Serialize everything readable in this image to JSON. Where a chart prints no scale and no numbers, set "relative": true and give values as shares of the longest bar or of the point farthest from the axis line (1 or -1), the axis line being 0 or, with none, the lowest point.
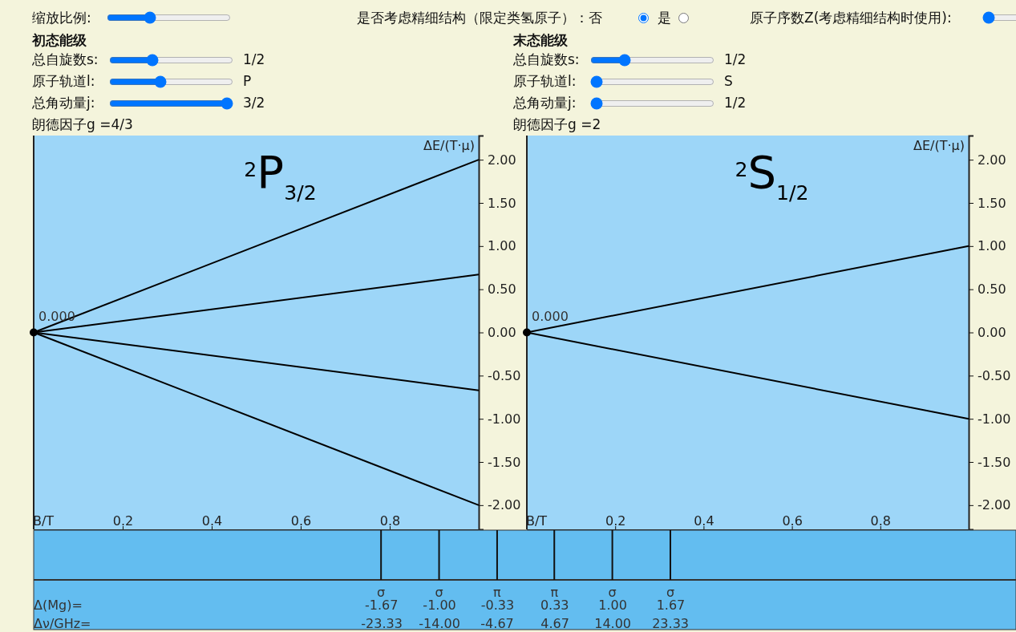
{
  "chart_data": [
    {
      "type": "other",
      "annotations": [
        "缩放比例:",
        "是否考虑精细结构（限定类氢原子）：否",
        "是",
        "原子序数Z(考虑精细结构时使用):"
      ]
    },
    {
      "type": "line",
      "title": "$^{2}$P$_{3/2}$",
      "xlabel": "B/T",
      "ylabel": "ΔE/(T·μ)",
      "xlim": [
        0,
        1
      ],
      "ylim": [
        -2.28,
        2.28
      ],
      "xticks": [
        0.2,
        0.4,
        0.6,
        0.8
      ],
      "yticks": [
        {
          "value": 2,
          "label": "2.00"
        },
        {
          "value": 1.5,
          "label": "1.50"
        },
        {
          "value": 1,
          "label": "1.00"
        },
        {
          "value": 0.5,
          "label": "0.50"
        },
        {
          "value": 0,
          "label": "0.00"
        },
        {
          "value": -0.5,
          "label": "-0.50"
        },
        {
          "value": -1,
          "label": "-1.00"
        },
        {
          "value": -1.5,
          "label": "-1.50"
        },
        {
          "value": -2,
          "label": "-2.00"
        }
      ],
      "grid": false,
      "line_style": "solid",
      "x": [
        0,
        1
      ],
      "series": [
        {
          "color": "#000000",
          "values": [
            0,
            2
          ]
        },
        {
          "color": "#000000",
          "values": [
            0,
            0.67
          ]
        },
        {
          "color": "#000000",
          "values": [
            0,
            -0.67
          ]
        },
        {
          "color": "#000000",
          "values": [
            0,
            -2
          ]
        },
        {
          "type": "scatter",
          "color": "#000000",
          "x": [
            0
          ],
          "values": [
            0
          ]
        }
      ],
      "annotations": [
        {
          "text": "0.000",
          "x": 0,
          "y": 0
        },
        "初态能级",
        "总自旋数s:",
        "1/2",
        "原子轨道l:",
        "P",
        "总角动量j:",
        "3/2",
        "朗德因子g =4/3"
      ]
    },
    {
      "type": "line",
      "title": "$^{2}$S$_{1/2}$",
      "xlabel": "B/T",
      "ylabel": "ΔE/(T·μ)",
      "xlim": [
        0,
        1
      ],
      "ylim": [
        -2.28,
        2.28
      ],
      "xticks": [
        0.2,
        0.4,
        0.6,
        0.8
      ],
      "yticks": [
        {
          "value": 2,
          "label": "2.00"
        },
        {
          "value": 1.5,
          "label": "1.50"
        },
        {
          "value": 1,
          "label": "1.00"
        },
        {
          "value": 0.5,
          "label": "0.50"
        },
        {
          "value": 0,
          "label": "0.00"
        },
        {
          "value": -0.5,
          "label": "-0.50"
        },
        {
          "value": -1,
          "label": "-1.00"
        },
        {
          "value": -1.5,
          "label": "-1.50"
        },
        {
          "value": -2,
          "label": "-2.00"
        }
      ],
      "grid": false,
      "line_style": "solid",
      "x": [
        0,
        1
      ],
      "series": [
        {
          "color": "#000000",
          "values": [
            0,
            1
          ]
        },
        {
          "color": "#000000",
          "values": [
            0,
            -1
          ]
        },
        {
          "type": "scatter",
          "color": "#000000",
          "x": [
            0
          ],
          "values": [
            0
          ]
        }
      ],
      "annotations": [
        {
          "text": "0.000",
          "x": 0,
          "y": 0
        },
        "末态能级",
        "总自旋数s:",
        "1/2",
        "原子轨道l:",
        "S",
        "总角动量j:",
        "1/2",
        "朗德因子g =2"
      ]
    },
    {
      "type": "bar",
      "relative": true,
      "x": [
        -1.67,
        -1,
        -0.33,
        0.33,
        1,
        1.67
      ],
      "values": [
        1,
        1,
        1,
        1,
        1,
        1
      ],
      "color": "#111111",
      "xlabel": "Δ(Mg)=",
      "x2label": "Δν/GHz=",
      "xlim": [
        -5.68,
        5.66
      ],
      "x2lim": [
        -79.52,
        79.24
      ],
      "xticks": [
        {
          "value": -1.67,
          "label": "-1.67"
        },
        {
          "value": -1,
          "label": "-1.00"
        },
        {
          "value": -0.33,
          "label": "-0.33"
        },
        {
          "value": 0.33,
          "label": "0.33"
        },
        {
          "value": 1,
          "label": "1.00"
        },
        {
          "value": 1.67,
          "label": "1.67"
        }
      ],
      "x2ticks": [
        {
          "value": -23.33,
          "label": "-23.33"
        },
        {
          "value": -14,
          "label": "-14.00"
        },
        {
          "value": -4.67,
          "label": "-4.67"
        },
        {
          "value": 4.67,
          "label": "4.67"
        },
        {
          "value": 14,
          "label": "14.00"
        },
        {
          "value": 23.33,
          "label": "23.33"
        }
      ],
      "annotations": [
        "σ",
        "σ",
        "π",
        "π",
        "σ",
        "σ"
      ]
    }
  ]
}
